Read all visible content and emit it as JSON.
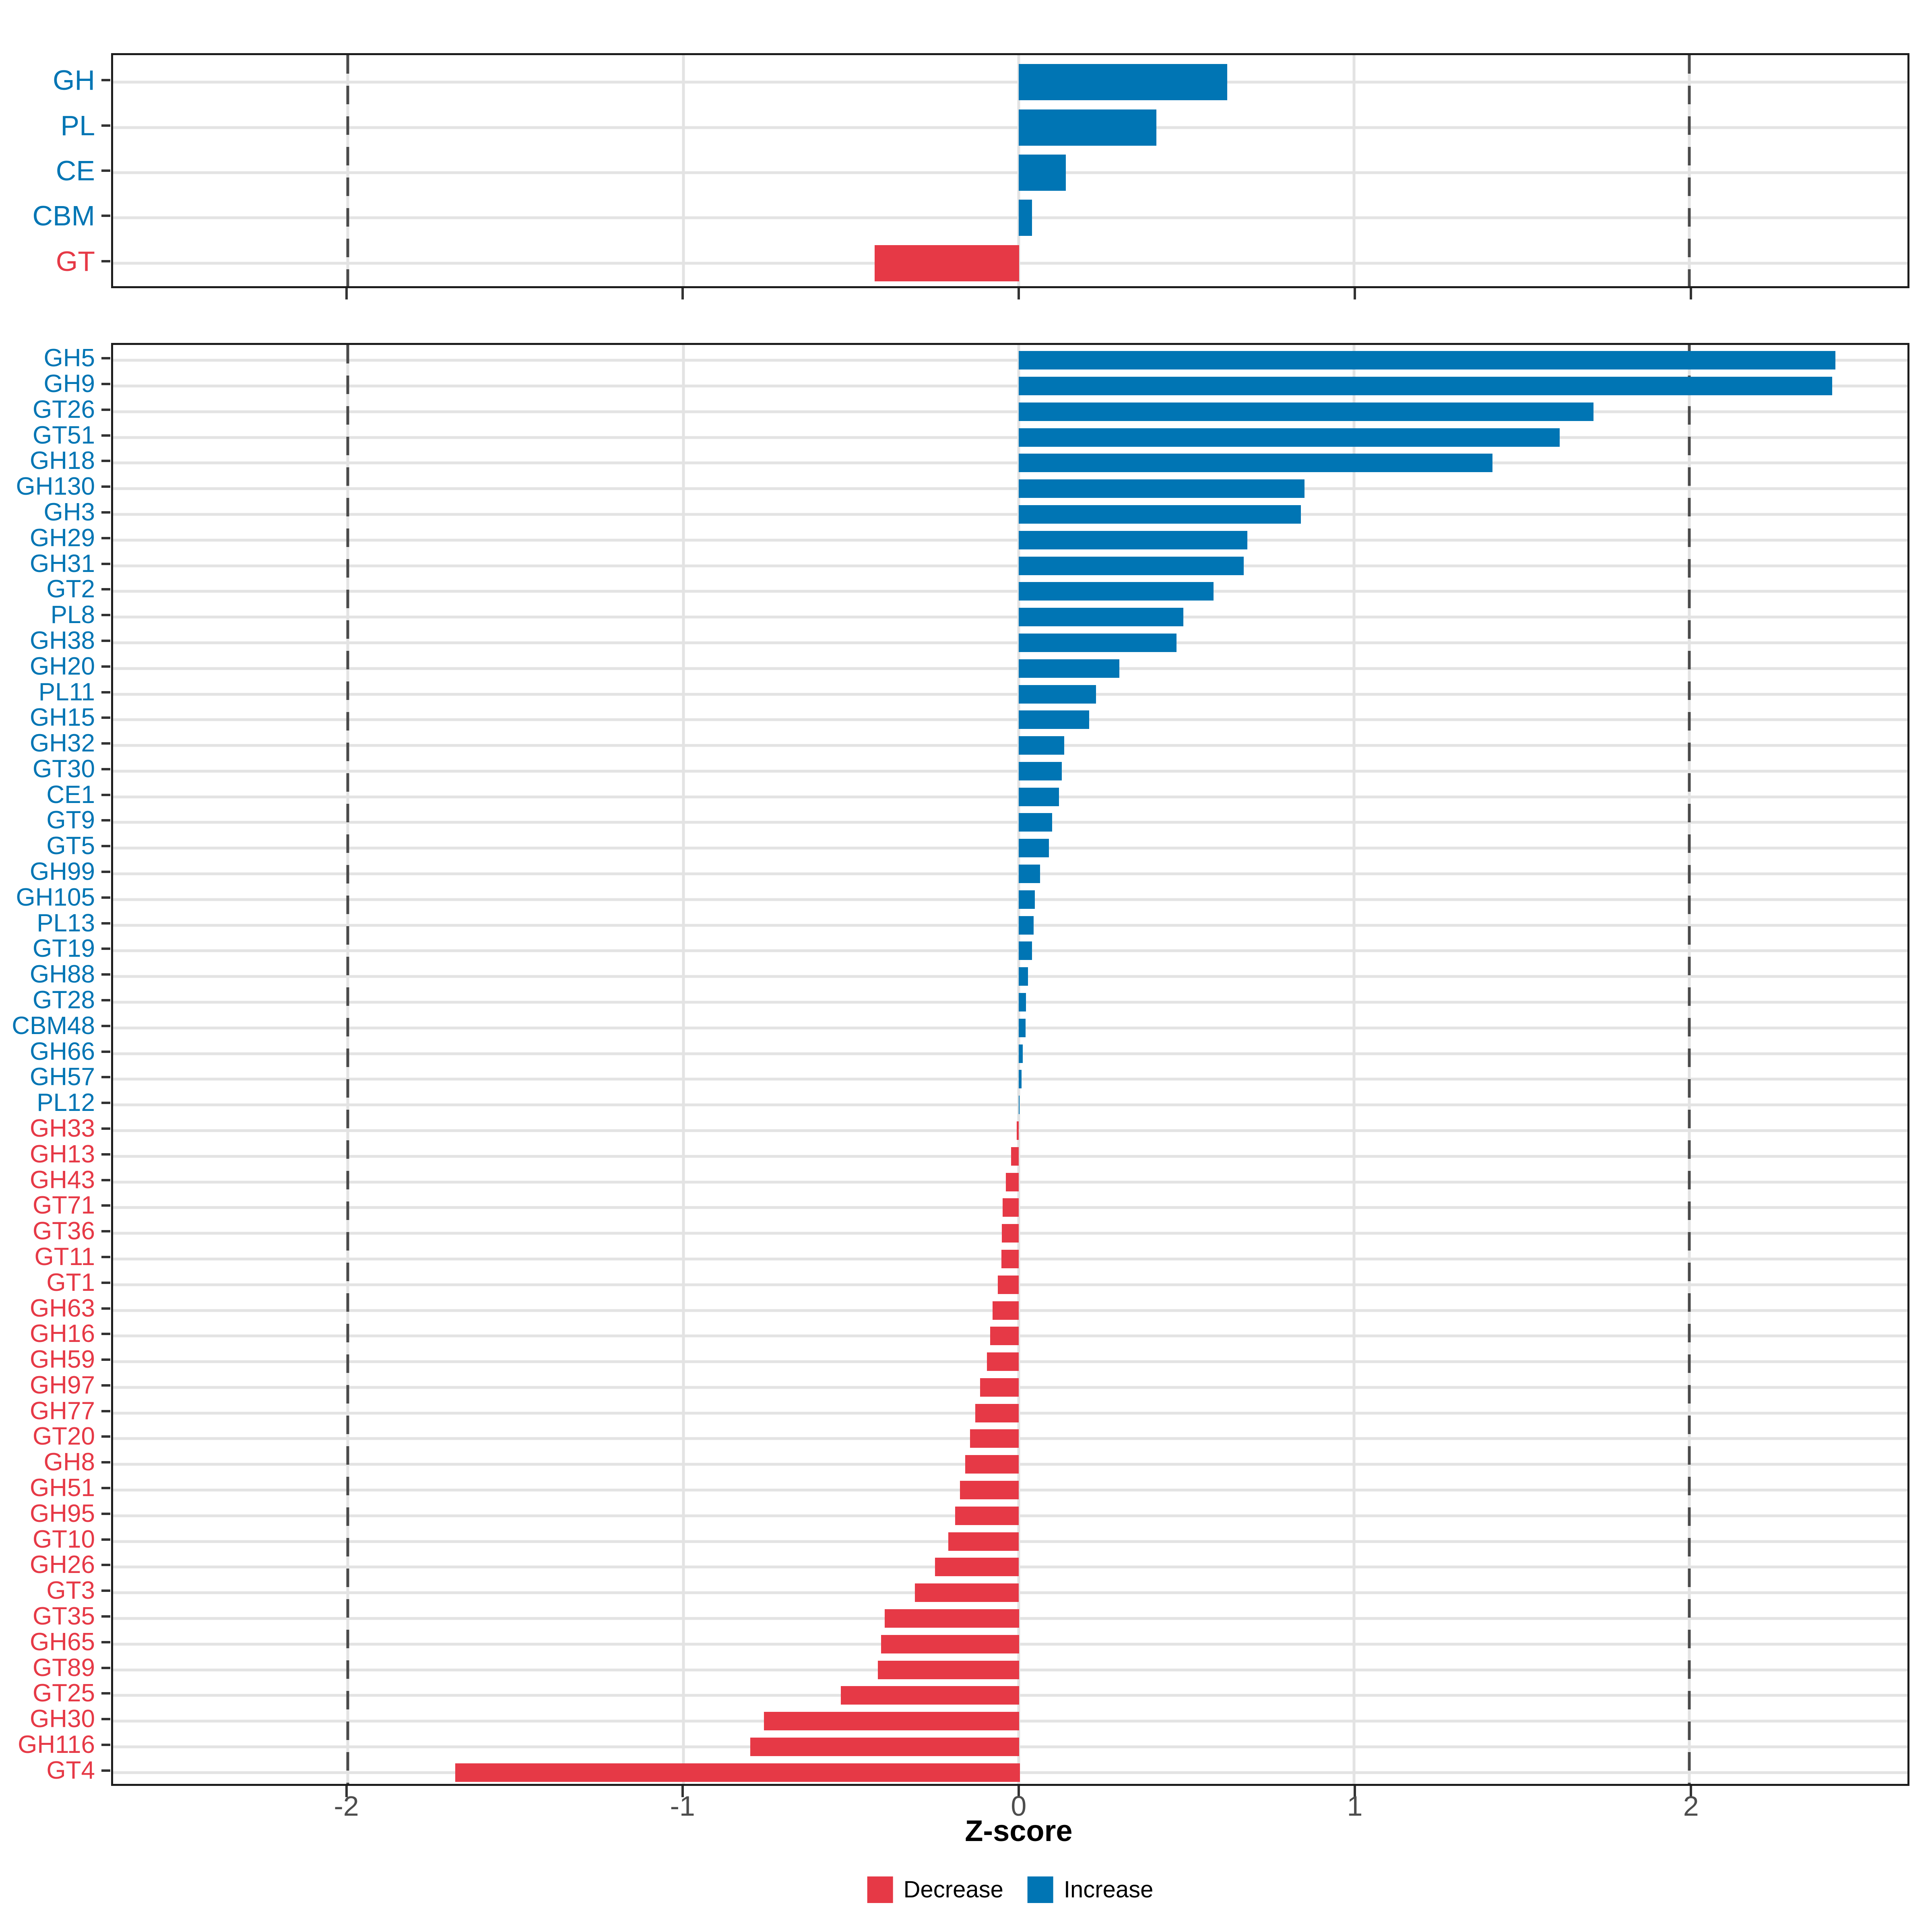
{
  "chart_data": {
    "type": "bar",
    "orientation": "horizontal",
    "title": "",
    "xlabel": "Z-score",
    "ylabel": "",
    "xlim": [
      -2.7,
      2.65
    ],
    "x_ticks": [
      -2,
      -1,
      0,
      1,
      2
    ],
    "x_tick_labels": [
      "-2",
      "-1",
      "0",
      "1",
      "2"
    ],
    "dashed_vlines": [
      -2,
      2
    ],
    "grid": true,
    "legend_position": "bottom",
    "colors": {
      "increase": "#0075b4",
      "decrease": "#e63946"
    },
    "legend": [
      {
        "label": "Decrease",
        "key": "decrease",
        "color": "#e63946"
      },
      {
        "label": "Increase",
        "key": "increase",
        "color": "#0075b4"
      }
    ],
    "panels": [
      {
        "name": "class-summary",
        "categories": [
          "GH",
          "PL",
          "CE",
          "CBM",
          "GT"
        ],
        "values": [
          0.62,
          0.41,
          0.14,
          0.04,
          -0.43
        ]
      },
      {
        "name": "family-detail",
        "categories": [
          "GH5",
          "GH9",
          "GT26",
          "GT51",
          "GH18",
          "GH130",
          "GH3",
          "GH29",
          "GH31",
          "GT2",
          "PL8",
          "GH38",
          "GH20",
          "PL11",
          "GH15",
          "GH32",
          "GT30",
          "CE1",
          "GT9",
          "GT5",
          "GH99",
          "GH105",
          "PL13",
          "GT19",
          "GH88",
          "GT28",
          "CBM48",
          "GH66",
          "GH57",
          "PL12",
          "GH33",
          "GH13",
          "GH43",
          "GT71",
          "GT36",
          "GT11",
          "GT1",
          "GH63",
          "GH16",
          "GH59",
          "GH97",
          "GH77",
          "GT20",
          "GH8",
          "GH51",
          "GH95",
          "GT10",
          "GH26",
          "GT3",
          "GT35",
          "GH65",
          "GT89",
          "GT25",
          "GH30",
          "GH116",
          "GT4"
        ],
        "values": [
          2.43,
          2.42,
          1.71,
          1.61,
          1.41,
          0.85,
          0.84,
          0.68,
          0.67,
          0.58,
          0.49,
          0.47,
          0.3,
          0.23,
          0.21,
          0.135,
          0.128,
          0.12,
          0.1,
          0.09,
          0.064,
          0.048,
          0.044,
          0.04,
          0.028,
          0.022,
          0.02,
          0.012,
          0.008,
          0.003,
          -0.006,
          -0.022,
          -0.038,
          -0.048,
          -0.05,
          -0.052,
          -0.062,
          -0.078,
          -0.085,
          -0.095,
          -0.115,
          -0.13,
          -0.145,
          -0.16,
          -0.175,
          -0.19,
          -0.21,
          -0.25,
          -0.31,
          -0.4,
          -0.41,
          -0.42,
          -0.53,
          -0.76,
          -0.8,
          -1.68
        ]
      }
    ]
  }
}
